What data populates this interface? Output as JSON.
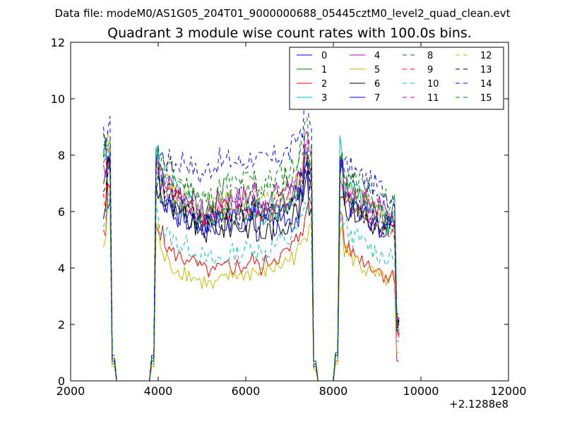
{
  "header": {
    "data_file": "Data file: modeM0/AS1G05_204T01_9000000688_05445cztM0_level2_quad_clean.evt"
  },
  "chart_data": {
    "type": "line",
    "title": "Quadrant 3 module wise count rates with 100.0s bins.",
    "xlabel": "",
    "ylabel": "",
    "x_offset_label": "+2.1288e8",
    "xlim": [
      2000,
      12000
    ],
    "ylim": [
      0,
      12
    ],
    "x_ticks": [
      "2000",
      "4000",
      "6000",
      "8000",
      "10000",
      "12000"
    ],
    "y_ticks": [
      "0",
      "2",
      "4",
      "6",
      "8",
      "10",
      "12"
    ],
    "grid": false,
    "legend_position": "top-right",
    "x_start": 2750,
    "bin_width": 100,
    "series": [
      {
        "name": "0",
        "color": "#0000ff",
        "dash": "solid",
        "profile": [
          8.2,
          6.2,
          0.8,
          0,
          0,
          0,
          0,
          0,
          0,
          0,
          0,
          0.8,
          7.9,
          6.4,
          6.0,
          6.2,
          5.6,
          5.9,
          6.1,
          5.7,
          5.6,
          5.3,
          5.5,
          5.6,
          5.7,
          5.4,
          5.9,
          5.5,
          5.8,
          5.6,
          5.6,
          5.7,
          5.6,
          5.6,
          5.9,
          5.4,
          5.5,
          5.6,
          5.5,
          5.5,
          5.6,
          5.8,
          5.7,
          5.7,
          5.9,
          6.2,
          8.0,
          7.2,
          0.6,
          0,
          0,
          0,
          0,
          1.0,
          7.7,
          6.4,
          6.2,
          6.4,
          6.1,
          5.9,
          5.8,
          5.7,
          5.6,
          5.3,
          5.4,
          5.3,
          5.5,
          2.0
        ],
        "noise": 0.3
      },
      {
        "name": "1",
        "color": "#008000",
        "dash": "solid",
        "profile": [
          8.4,
          6.5,
          0.8,
          0,
          0,
          0,
          0,
          0,
          0,
          0,
          0,
          0.8,
          7.8,
          6.6,
          6.4,
          6.3,
          6.0,
          6.1,
          6.2,
          6.0,
          5.9,
          5.7,
          5.8,
          5.6,
          5.9,
          6.0,
          6.1,
          6.0,
          6.2,
          6.1,
          6.0,
          5.9,
          6.0,
          6.1,
          6.2,
          6.0,
          5.9,
          6.0,
          6.0,
          6.0,
          6.1,
          6.3,
          6.3,
          6.5,
          6.8,
          7.2,
          8.3,
          7.5,
          0.6,
          0,
          0,
          0,
          0,
          1.0,
          8.0,
          6.7,
          6.5,
          6.5,
          6.3,
          6.2,
          6.1,
          6.0,
          5.9,
          5.8,
          5.7,
          5.6,
          5.6,
          2.0
        ],
        "noise": 0.3
      },
      {
        "name": "2",
        "color": "#ff0000",
        "dash": "solid",
        "profile": [
          5.1,
          6.8,
          0.6,
          0,
          0,
          0,
          0,
          0,
          0,
          0,
          0,
          0.5,
          5.6,
          5.2,
          4.8,
          4.6,
          4.5,
          4.4,
          4.3,
          4.4,
          4.2,
          4.1,
          4.0,
          3.9,
          3.9,
          3.8,
          4.0,
          3.9,
          4.1,
          4.0,
          4.1,
          4.0,
          4.1,
          4.2,
          4.3,
          4.1,
          4.0,
          4.2,
          4.3,
          4.4,
          4.4,
          4.5,
          4.6,
          4.8,
          5.0,
          5.4,
          6.0,
          6.3,
          0.4,
          0,
          0,
          0,
          0,
          0.7,
          6.0,
          4.8,
          4.6,
          4.5,
          4.4,
          4.3,
          4.2,
          4.1,
          4.0,
          3.9,
          3.8,
          3.7,
          3.7,
          0.7
        ],
        "noise": 0.2
      },
      {
        "name": "3",
        "color": "#00bfbf",
        "dash": "solid",
        "profile": [
          8.0,
          8.2,
          0.7,
          0,
          0,
          0,
          0,
          0,
          0,
          0,
          0,
          0.7,
          8.3,
          7.2,
          7.0,
          7.0,
          6.8,
          6.5,
          6.4,
          6.3,
          6.2,
          6.0,
          5.9,
          5.8,
          5.8,
          5.9,
          6.0,
          6.1,
          6.2,
          6.2,
          6.2,
          6.1,
          6.1,
          6.2,
          6.3,
          6.1,
          6.0,
          6.1,
          6.1,
          6.2,
          6.3,
          6.4,
          6.4,
          6.6,
          6.8,
          7.0,
          7.8,
          7.4,
          0.6,
          0,
          0,
          0,
          0,
          1.0,
          8.5,
          7.0,
          6.8,
          6.7,
          6.5,
          6.3,
          6.2,
          6.0,
          5.9,
          5.8,
          5.7,
          5.6,
          5.6,
          2.0
        ],
        "noise": 0.3
      },
      {
        "name": "4",
        "color": "#bf00bf",
        "dash": "solid",
        "profile": [
          7.6,
          8.0,
          0.8,
          0,
          0,
          0,
          0,
          0,
          0,
          0,
          0,
          0.8,
          7.8,
          7.3,
          7.0,
          7.0,
          6.8,
          6.7,
          6.6,
          6.5,
          6.3,
          6.1,
          6.0,
          5.9,
          6.0,
          6.1,
          6.3,
          6.4,
          6.5,
          6.5,
          6.5,
          6.4,
          6.5,
          6.6,
          6.8,
          6.5,
          6.4,
          6.5,
          6.5,
          6.6,
          6.7,
          6.8,
          6.8,
          7.0,
          7.2,
          7.6,
          8.5,
          7.7,
          0.6,
          0,
          0,
          0,
          0,
          1.0,
          7.6,
          7.1,
          6.8,
          6.8,
          6.6,
          6.5,
          6.4,
          6.3,
          6.2,
          6.1,
          6.0,
          5.9,
          5.9,
          2.0
        ],
        "noise": 0.3
      },
      {
        "name": "5",
        "color": "#bfbf00",
        "dash": "solid",
        "profile": [
          4.8,
          6.4,
          0.5,
          0,
          0,
          0,
          0,
          0,
          0,
          0,
          0,
          0.5,
          5.5,
          4.6,
          4.3,
          4.1,
          4.0,
          3.9,
          3.9,
          3.8,
          3.7,
          3.6,
          3.5,
          3.5,
          3.4,
          3.3,
          3.5,
          3.5,
          3.7,
          3.7,
          3.8,
          3.7,
          3.8,
          3.8,
          3.9,
          3.8,
          3.8,
          3.9,
          4.0,
          4.0,
          4.1,
          4.2,
          4.3,
          4.4,
          4.6,
          4.8,
          5.0,
          5.8,
          0.4,
          0,
          0,
          0,
          0,
          0.6,
          5.5,
          4.6,
          4.4,
          4.3,
          4.2,
          4.0,
          3.9,
          3.8,
          3.7,
          3.6,
          3.6,
          3.5,
          3.6,
          1.0
        ],
        "noise": 0.2
      },
      {
        "name": "6",
        "color": "#000000",
        "dash": "solid",
        "profile": [
          6.0,
          7.8,
          0.7,
          0,
          0,
          0,
          0,
          0,
          0,
          0,
          0,
          0.7,
          6.8,
          6.6,
          6.3,
          6.1,
          6.0,
          5.9,
          5.8,
          5.7,
          5.6,
          5.5,
          5.4,
          5.3,
          5.4,
          5.4,
          5.5,
          5.4,
          5.5,
          5.5,
          5.6,
          5.5,
          5.4,
          5.5,
          5.6,
          5.3,
          5.2,
          5.3,
          5.4,
          5.4,
          5.5,
          5.6,
          5.7,
          5.9,
          6.1,
          6.4,
          7.0,
          6.2,
          0.5,
          0,
          0,
          0,
          0,
          0.9,
          6.8,
          6.3,
          6.1,
          6.0,
          5.9,
          5.8,
          5.7,
          5.6,
          5.5,
          5.4,
          5.3,
          5.3,
          5.3,
          2.0
        ],
        "noise": 0.3
      },
      {
        "name": "7",
        "color": "#0000ff",
        "dash": "solid",
        "profile": [
          7.4,
          7.6,
          0.8,
          0,
          0,
          0,
          0,
          0,
          0,
          0,
          0,
          0.8,
          7.2,
          6.7,
          6.4,
          6.3,
          6.1,
          6.0,
          6.0,
          5.9,
          5.8,
          5.6,
          5.6,
          5.5,
          5.6,
          5.7,
          5.8,
          5.8,
          5.9,
          5.9,
          5.9,
          5.8,
          5.9,
          6.0,
          6.1,
          5.9,
          5.8,
          5.9,
          5.9,
          6.0,
          6.1,
          6.2,
          6.2,
          6.4,
          6.6,
          7.0,
          7.8,
          7.0,
          0.6,
          0,
          0,
          0,
          0,
          1.0,
          7.4,
          6.6,
          6.4,
          6.3,
          6.1,
          6.0,
          5.9,
          5.8,
          5.7,
          5.6,
          5.5,
          5.5,
          5.5,
          2.0
        ],
        "noise": 0.3
      },
      {
        "name": "8",
        "color": "#008000",
        "dash": "dashed",
        "profile": [
          8.4,
          8.6,
          0.8,
          0,
          0,
          0,
          0,
          0,
          0,
          0,
          0,
          0.8,
          8.0,
          7.8,
          7.6,
          7.5,
          7.3,
          7.2,
          7.0,
          6.9,
          6.8,
          6.6,
          6.5,
          6.4,
          6.5,
          6.6,
          6.8,
          6.9,
          7.0,
          7.0,
          7.0,
          7.0,
          7.1,
          7.1,
          7.2,
          7.0,
          6.9,
          7.0,
          7.1,
          7.2,
          7.3,
          7.4,
          7.4,
          7.6,
          7.8,
          8.2,
          8.8,
          7.9,
          0.6,
          0,
          0,
          0,
          0,
          1.0,
          7.8,
          7.3,
          7.2,
          7.1,
          7.0,
          6.9,
          6.8,
          6.7,
          6.6,
          6.5,
          6.4,
          6.3,
          6.4,
          2.0
        ],
        "noise": 0.3
      },
      {
        "name": "9",
        "color": "#ff0000",
        "dash": "dashed",
        "profile": [
          6.4,
          8.0,
          0.7,
          0,
          0,
          0,
          0,
          0,
          0,
          0,
          0,
          0.7,
          7.3,
          7.0,
          6.8,
          6.6,
          6.4,
          6.3,
          6.2,
          6.1,
          6.0,
          5.8,
          5.7,
          5.7,
          5.8,
          5.9,
          6.0,
          6.0,
          6.1,
          6.1,
          6.1,
          6.0,
          6.1,
          6.2,
          6.3,
          6.1,
          6.0,
          6.1,
          6.1,
          6.2,
          6.3,
          6.4,
          6.4,
          6.6,
          6.8,
          7.2,
          8.0,
          7.2,
          0.6,
          0,
          0,
          0,
          0,
          1.0,
          7.0,
          6.5,
          6.3,
          6.2,
          6.0,
          5.9,
          5.8,
          5.7,
          5.6,
          5.5,
          5.4,
          5.4,
          5.4,
          2.0
        ],
        "noise": 0.3
      },
      {
        "name": "10",
        "color": "#00bfbf",
        "dash": "dashed",
        "profile": [
          5.4,
          6.6,
          0.6,
          0,
          0,
          0,
          0,
          0,
          0,
          0,
          0,
          0.6,
          6.0,
          5.5,
          5.2,
          5.1,
          5.0,
          4.9,
          4.8,
          4.8,
          4.7,
          4.5,
          4.4,
          4.3,
          4.3,
          4.2,
          4.3,
          4.3,
          4.4,
          4.5,
          4.5,
          4.5,
          4.6,
          4.7,
          4.8,
          4.6,
          4.5,
          4.6,
          4.7,
          4.8,
          4.9,
          5.0,
          5.0,
          5.2,
          5.4,
          5.7,
          6.2,
          6.8,
          0.5,
          0,
          0,
          0,
          0,
          0.8,
          5.8,
          5.4,
          5.2,
          5.1,
          5.0,
          4.9,
          4.8,
          4.7,
          4.6,
          4.5,
          4.4,
          4.3,
          4.3,
          1.4
        ],
        "noise": 0.25
      },
      {
        "name": "11",
        "color": "#bf00bf",
        "dash": "dashed",
        "profile": [
          7.8,
          8.0,
          0.8,
          0,
          0,
          0,
          0,
          0,
          0,
          0,
          0,
          0.8,
          7.5,
          7.1,
          6.9,
          6.8,
          6.6,
          6.5,
          6.4,
          6.3,
          6.2,
          6.0,
          5.9,
          5.8,
          5.9,
          6.0,
          6.2,
          6.2,
          6.3,
          6.3,
          6.3,
          6.2,
          6.3,
          6.4,
          6.5,
          6.3,
          6.2,
          6.3,
          6.3,
          6.4,
          6.5,
          6.6,
          6.6,
          6.8,
          7.0,
          7.4,
          8.3,
          7.5,
          0.6,
          0,
          0,
          0,
          0,
          1.0,
          7.4,
          6.8,
          6.6,
          6.6,
          6.4,
          6.3,
          6.2,
          6.1,
          6.0,
          5.9,
          5.8,
          5.7,
          5.7,
          2.0
        ],
        "noise": 0.3
      },
      {
        "name": "12",
        "color": "#bfbf00",
        "dash": "dashed",
        "profile": [
          7.2,
          8.4,
          0.7,
          0,
          0,
          0,
          0,
          0,
          0,
          0,
          0,
          0.7,
          7.4,
          7.1,
          6.9,
          6.8,
          6.7,
          6.6,
          6.5,
          6.4,
          6.3,
          6.1,
          6.0,
          5.9,
          6.0,
          6.1,
          6.2,
          6.2,
          6.3,
          6.3,
          6.3,
          6.2,
          6.3,
          6.4,
          6.5,
          6.3,
          6.2,
          6.3,
          6.3,
          6.4,
          6.5,
          6.6,
          6.6,
          6.8,
          7.0,
          7.4,
          8.2,
          7.4,
          0.6,
          0,
          0,
          0,
          0,
          1.0,
          7.2,
          6.8,
          6.6,
          6.5,
          6.4,
          6.3,
          6.2,
          6.1,
          6.0,
          5.9,
          5.8,
          5.7,
          5.7,
          2.0
        ],
        "noise": 0.3
      },
      {
        "name": "13",
        "color": "#000000",
        "dash": "dashed",
        "profile": [
          7.1,
          7.6,
          0.7,
          0,
          0,
          0,
          0,
          0,
          0,
          0,
          0,
          0.7,
          7.0,
          6.9,
          6.7,
          6.6,
          6.4,
          6.3,
          6.2,
          6.1,
          6.0,
          5.8,
          5.7,
          5.6,
          5.7,
          5.8,
          5.9,
          5.9,
          6.0,
          6.0,
          6.0,
          5.9,
          6.0,
          6.1,
          6.2,
          6.0,
          5.9,
          6.0,
          6.0,
          6.1,
          6.2,
          6.3,
          6.3,
          6.5,
          6.7,
          7.0,
          7.6,
          7.0,
          0.6,
          0,
          0,
          0,
          0,
          1.0,
          7.1,
          6.6,
          6.4,
          6.3,
          6.1,
          6.0,
          5.9,
          5.8,
          5.7,
          5.6,
          5.5,
          5.4,
          5.4,
          2.0
        ],
        "noise": 0.3
      },
      {
        "name": "14",
        "color": "#0000ff",
        "dash": "dashed",
        "profile": [
          8.6,
          9.0,
          0.9,
          0,
          0,
          0,
          0,
          0,
          0,
          0,
          0,
          0.9,
          8.2,
          8.0,
          7.8,
          7.8,
          7.7,
          7.8,
          7.9,
          7.8,
          7.6,
          7.4,
          7.3,
          7.4,
          7.6,
          7.7,
          7.8,
          7.7,
          7.8,
          7.8,
          7.8,
          7.7,
          7.8,
          7.9,
          8.0,
          7.8,
          7.7,
          7.8,
          7.8,
          7.9,
          8.0,
          8.1,
          8.1,
          8.3,
          8.6,
          9.0,
          10.0,
          8.9,
          0.7,
          0,
          0,
          0,
          0,
          1.0,
          8.0,
          7.6,
          7.5,
          7.4,
          7.3,
          7.2,
          7.1,
          7.0,
          6.9,
          6.8,
          6.7,
          6.6,
          6.6,
          2.0
        ],
        "noise": 0.3
      },
      {
        "name": "15",
        "color": "#008000",
        "dash": "dashed",
        "profile": [
          8.1,
          8.2,
          0.8,
          0,
          0,
          0,
          0,
          0,
          0,
          0,
          0,
          0.8,
          7.9,
          7.6,
          7.4,
          7.3,
          7.1,
          7.0,
          6.9,
          6.8,
          6.7,
          6.5,
          6.4,
          6.3,
          6.4,
          6.5,
          6.7,
          6.7,
          6.8,
          6.8,
          6.8,
          6.7,
          6.8,
          6.9,
          7.0,
          6.8,
          6.7,
          6.8,
          6.8,
          6.9,
          7.0,
          7.1,
          7.1,
          7.3,
          7.5,
          7.9,
          8.9,
          8.0,
          0.7,
          0,
          0,
          0,
          0,
          1.0,
          7.8,
          7.3,
          7.1,
          7.0,
          6.9,
          6.8,
          6.7,
          6.6,
          6.5,
          6.4,
          6.3,
          6.2,
          6.2,
          2.0
        ],
        "noise": 0.3
      }
    ]
  }
}
